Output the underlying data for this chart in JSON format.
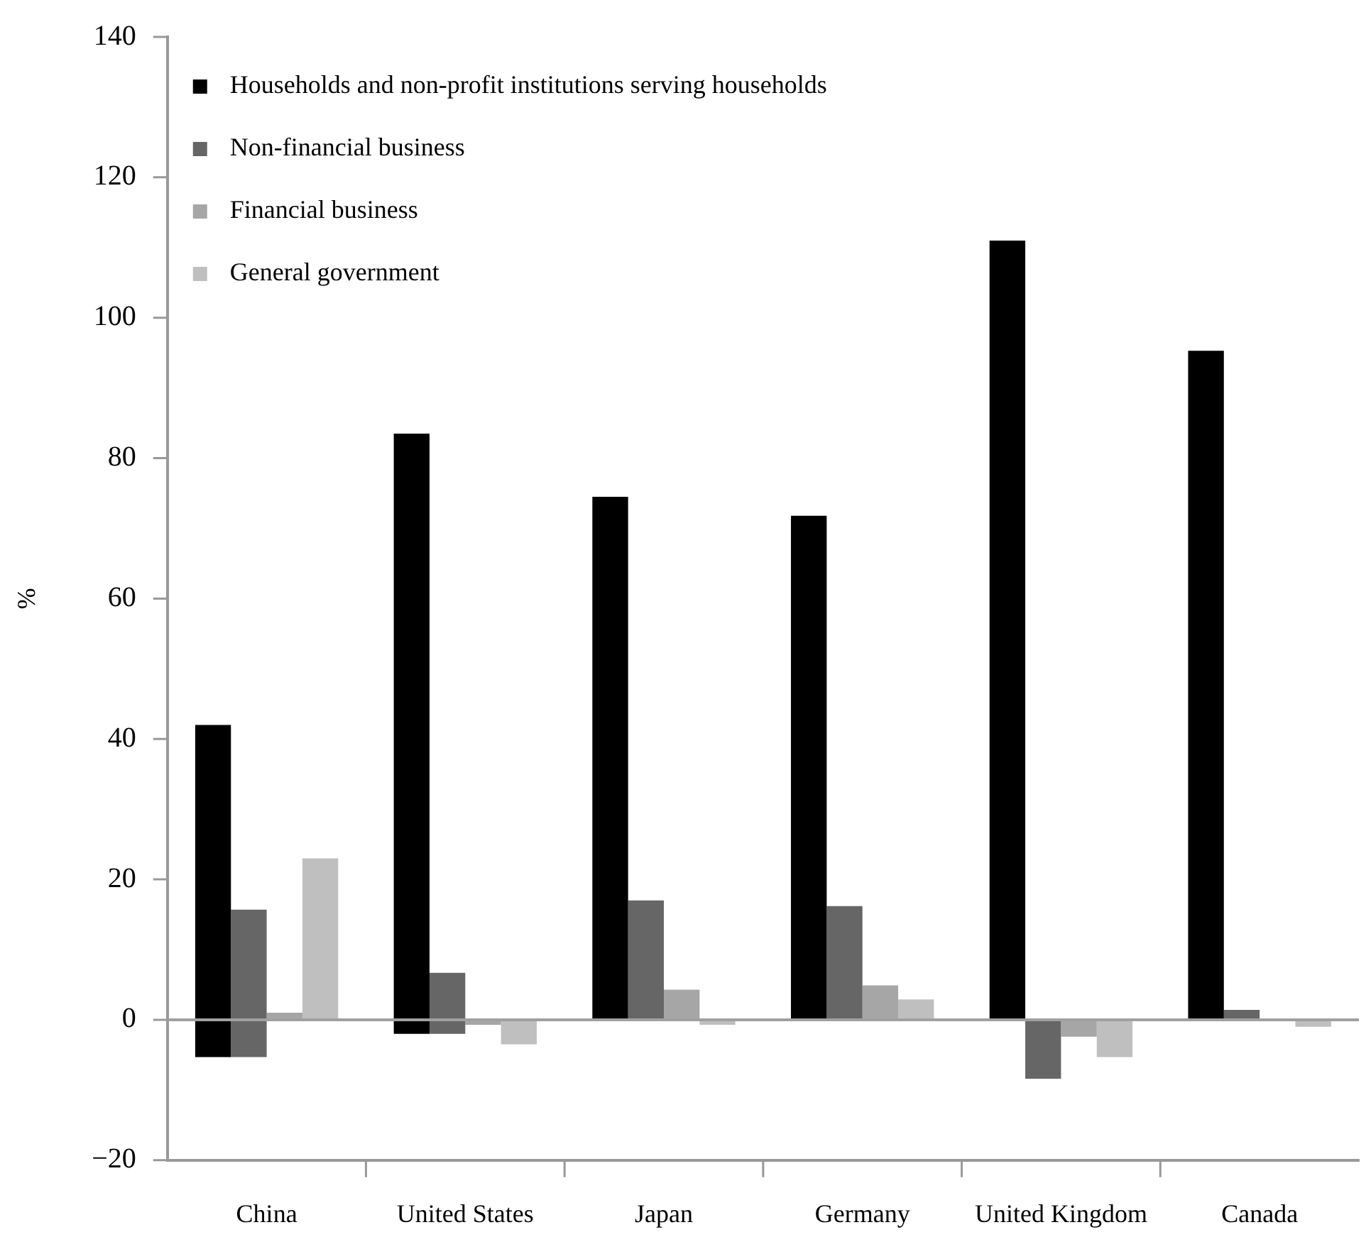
{
  "chart_data": {
    "type": "bar",
    "ylabel": "%",
    "categories": [
      "China",
      "United States",
      "Japan",
      "Germany",
      "United Kingdom",
      "Canada"
    ],
    "series": [
      {
        "name": "Households and non-profit institutions serving households",
        "color": "#000000",
        "base": [
          -5.3,
          -2,
          0,
          0,
          0,
          0
        ],
        "values": [
          47.3,
          85.5,
          74.5,
          71.8,
          111,
          95.3
        ]
      },
      {
        "name": "Non-financial business",
        "color": "#666666",
        "base": [
          -5.3,
          -2,
          0,
          0,
          0,
          0
        ],
        "values": [
          21,
          8.7,
          17,
          16.2,
          -8.4,
          1.4
        ]
      },
      {
        "name": "Financial business",
        "color": "#a6a6a6",
        "values": [
          1,
          -0.7,
          4.3,
          4.9,
          -2.4,
          0
        ]
      },
      {
        "name": "General government",
        "color": "#bfbfbf",
        "values": [
          23,
          -3.5,
          -0.7,
          2.9,
          -5.3,
          -1
        ]
      }
    ],
    "ylim": [
      -20,
      140
    ],
    "yticks": [
      -20,
      0,
      20,
      40,
      60,
      80,
      100,
      120,
      140
    ],
    "ref_lines": [
      {
        "axis": "y",
        "value": 0,
        "color": "#a0a0a0"
      }
    ],
    "grid": false,
    "legend": "top left"
  }
}
